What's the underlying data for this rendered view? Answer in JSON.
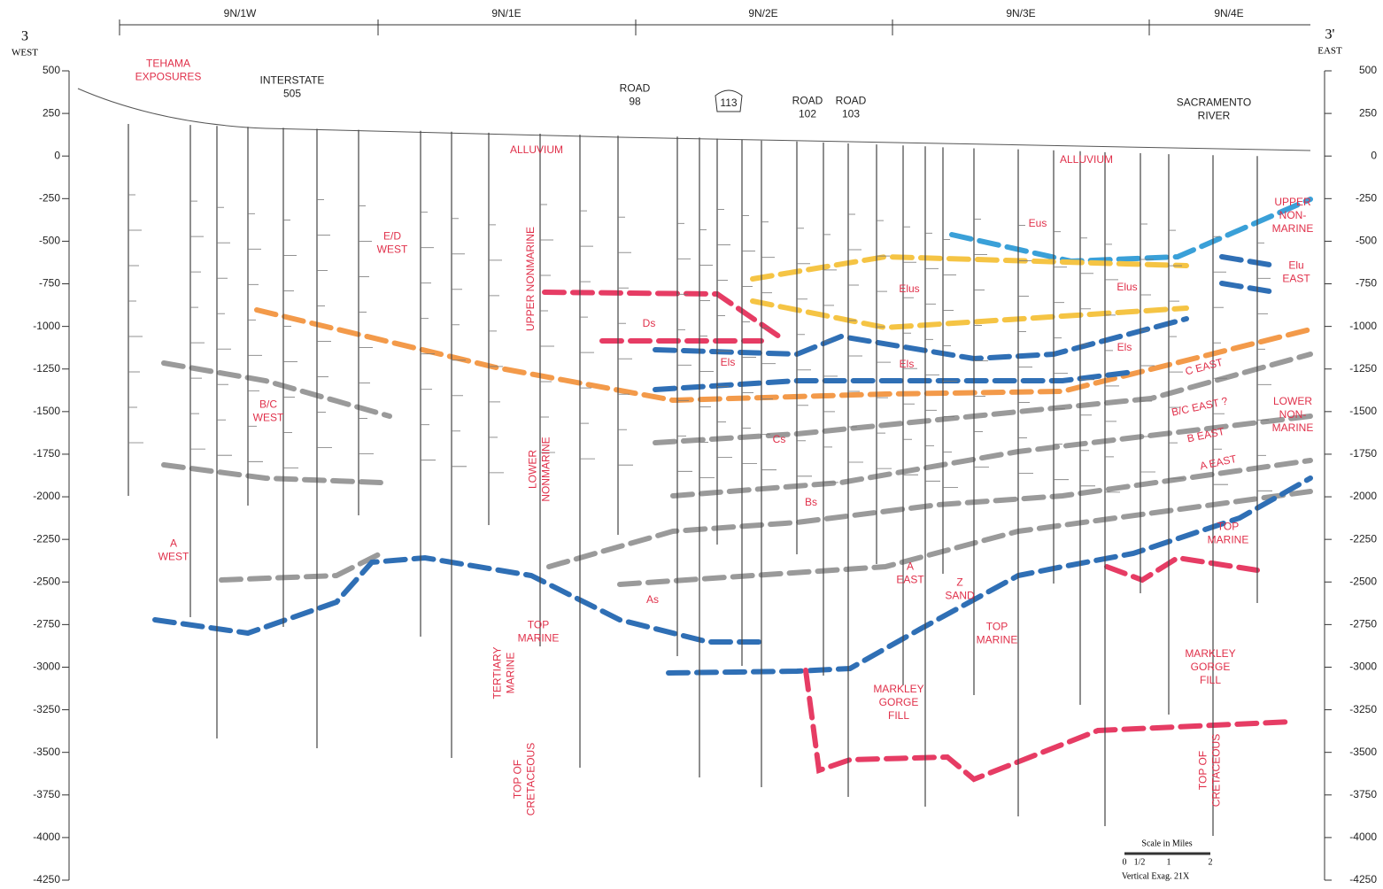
{
  "section": {
    "west_id": "3",
    "west": "WEST",
    "east_id": "3'",
    "east": "EAST"
  },
  "townships": [
    "9N/1W",
    "9N/1E",
    "9N/2E",
    "9N/3E",
    "9N/4E"
  ],
  "depth_ticks": [
    500,
    250,
    0,
    -250,
    -500,
    -750,
    -1000,
    -1250,
    -1500,
    -1750,
    -2000,
    -2250,
    -2500,
    -2750,
    -3000,
    -3250,
    -3500,
    -3750,
    -4000,
    -4250
  ],
  "landmarks": [
    [
      "INTERSTATE",
      "505"
    ],
    [
      "ROAD",
      "98"
    ],
    [
      "113"
    ],
    [
      "ROAD",
      "102"
    ],
    [
      "ROAD",
      "103"
    ],
    [
      "SACRAMENTO",
      "RIVER"
    ]
  ],
  "units": [
    [
      "TEHAMA",
      "EXPOSURES"
    ],
    [
      "ALLUVIUM"
    ],
    [
      "ALLUVIUM"
    ],
    [
      "UPPER NONMARINE"
    ],
    [
      "LOWER",
      "NONMARINE"
    ],
    [
      "E/D",
      "WEST"
    ],
    [
      "B/C",
      "WEST"
    ],
    [
      "A",
      "WEST"
    ],
    [
      "Ds"
    ],
    [
      "Els"
    ],
    [
      "Cs"
    ],
    [
      "Bs"
    ],
    [
      "As"
    ],
    [
      "Elus"
    ],
    [
      "Els"
    ],
    [
      "Eus"
    ],
    [
      "Elus"
    ],
    [
      "Els"
    ],
    [
      "UPPER",
      "NON-",
      "MARINE"
    ],
    [
      "Elu",
      "EAST"
    ],
    [
      "C EAST"
    ],
    [
      "B/C EAST ?"
    ],
    [
      "B EAST"
    ],
    [
      "A EAST"
    ],
    [
      "LOWER",
      "NON-",
      "MARINE"
    ],
    [
      "TOP",
      "MARINE"
    ],
    [
      "TOP",
      "MARINE"
    ],
    [
      "TOP",
      "MARINE"
    ],
    [
      "A",
      "EAST"
    ],
    [
      "Z",
      "SAND"
    ],
    [
      "TERTIARY",
      "MARINE"
    ],
    [
      "MARKLEY",
      "GORGE",
      "FILL"
    ],
    [
      "MARKLEY",
      "GORGE",
      "FILL"
    ],
    [
      "TOP OF",
      "CRETACEOUS"
    ],
    [
      "TOP OF",
      "CRETACEOUS"
    ]
  ],
  "scale": {
    "title": "Scale in Miles",
    "ticks": [
      "0",
      "1/2",
      "1",
      "2"
    ],
    "note": "Vertical Exag. 21X"
  }
}
